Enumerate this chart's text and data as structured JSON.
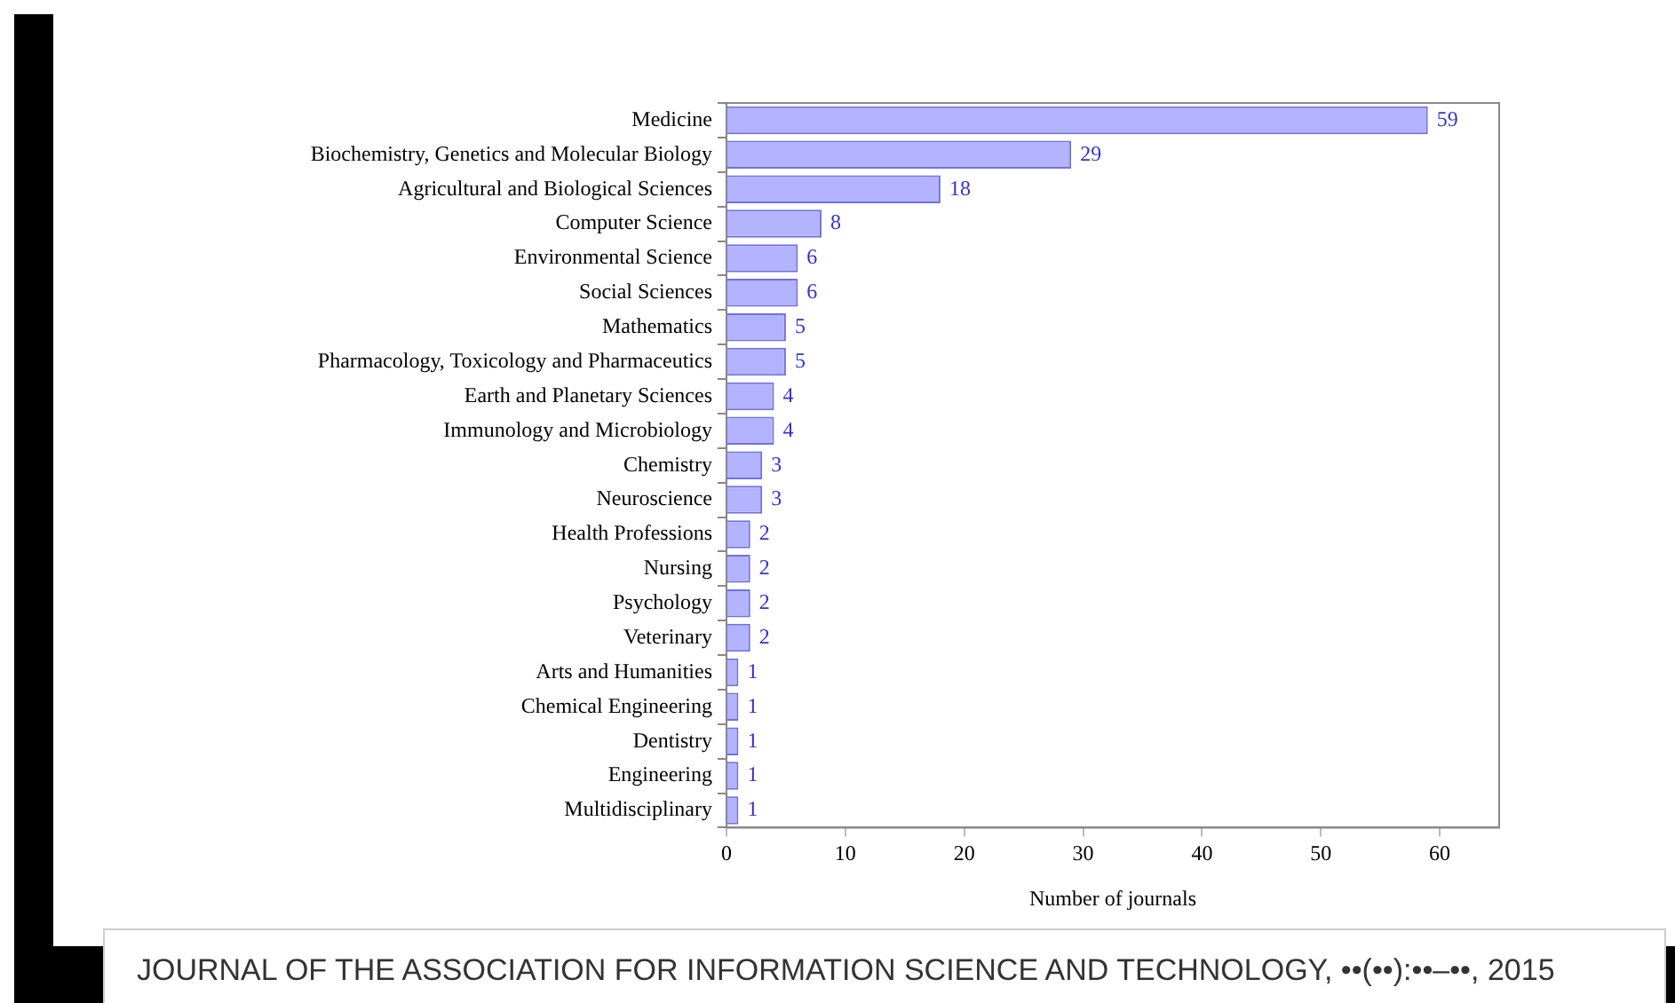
{
  "chart_data": {
    "type": "bar",
    "orientation": "horizontal",
    "xlabel": "Number of journals",
    "categories": [
      "Medicine",
      "Biochemistry, Genetics and Molecular Biology",
      "Agricultural and Biological Sciences",
      "Computer Science",
      "Environmental Science",
      "Social Sciences",
      "Mathematics",
      "Pharmacology, Toxicology and Pharmaceutics",
      "Earth and Planetary Sciences",
      "Immunology and Microbiology",
      "Chemistry",
      "Neuroscience",
      "Health Professions",
      "Nursing",
      "Psychology",
      "Veterinary",
      "Arts and Humanities",
      "Chemical Engineering",
      "Dentistry",
      "Engineering",
      "Multidisciplinary"
    ],
    "values": [
      59,
      29,
      18,
      8,
      6,
      6,
      5,
      5,
      4,
      4,
      3,
      3,
      2,
      2,
      2,
      2,
      1,
      1,
      1,
      1,
      1
    ],
    "color": "#b3b3ff",
    "xlim": [
      0,
      65
    ],
    "xticks": [
      0,
      10,
      20,
      30,
      40,
      50,
      60
    ],
    "grid": false,
    "legend": false,
    "data_labels": true,
    "annotations": [
      "JOURNAL OF THE ASSOCIATION FOR INFORMATION SCIENCE AND TECHNOLOGY, ••(••):••–••, 2015"
    ]
  }
}
